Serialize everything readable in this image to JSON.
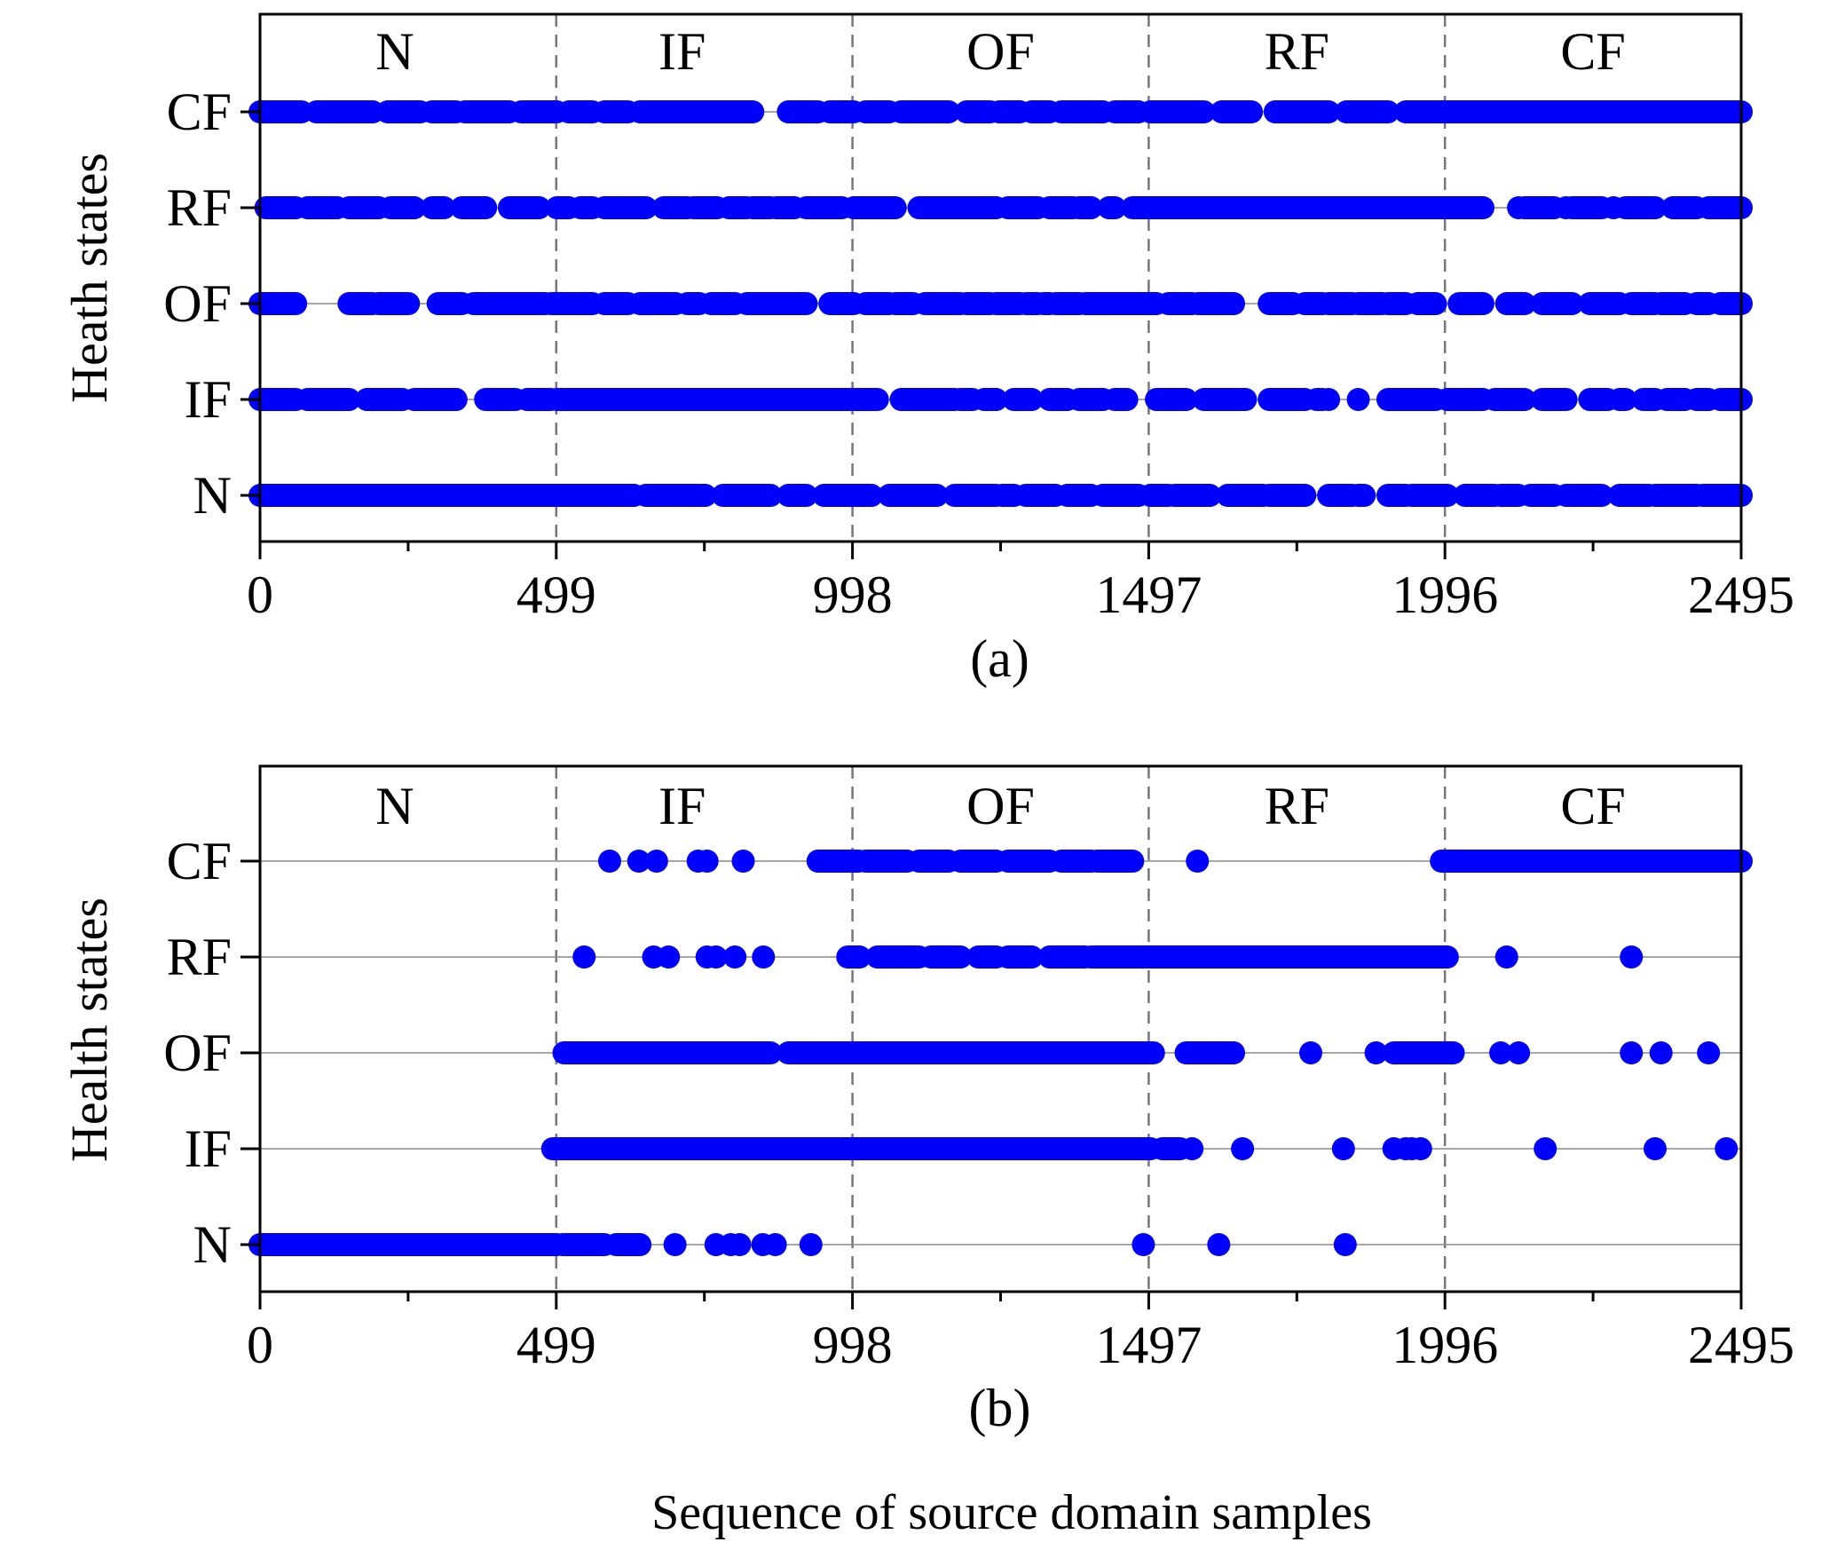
{
  "figure": {
    "xlabel": "Sequence of source domain samples"
  },
  "chart_data": [
    {
      "type": "scatter",
      "caption": "(a)",
      "ylabel": "Heath states",
      "xlim": [
        0,
        2495
      ],
      "x_ticks": [
        "0",
        "499",
        "998",
        "1497",
        "1996",
        "2495"
      ],
      "y_categories": [
        "N",
        "IF",
        "OF",
        "RF",
        "CF"
      ],
      "regions": [
        {
          "label": "N",
          "start": 0,
          "end": 499
        },
        {
          "label": "IF",
          "start": 499,
          "end": 998
        },
        {
          "label": "OF",
          "start": 998,
          "end": 1497
        },
        {
          "label": "RF",
          "start": 1497,
          "end": 1996
        },
        {
          "label": "CF",
          "start": 1996,
          "end": 2495
        }
      ],
      "marker_color": "#0000ff",
      "series": [
        {
          "category": "CF",
          "points": [],
          "runs": [
            [
              0,
              70
            ],
            [
              95,
              190
            ],
            [
              215,
              270
            ],
            [
              290,
              330
            ],
            [
              345,
              420
            ],
            [
              440,
              500
            ],
            [
              520,
              560
            ],
            [
              580,
              620
            ],
            [
              640,
              830
            ],
            [
              890,
              940
            ],
            [
              960,
              1000
            ],
            [
              1020,
              1060
            ],
            [
              1080,
              1160
            ],
            [
              1190,
              1230
            ],
            [
              1245,
              1280
            ],
            [
              1300,
              1330
            ],
            [
              1350,
              1420
            ],
            [
              1440,
              1480
            ],
            [
              1500,
              1590
            ],
            [
              1620,
              1670
            ],
            [
              1710,
              1800
            ],
            [
              1830,
              1900
            ],
            [
              1930,
              2495
            ]
          ]
        },
        {
          "category": "RF",
          "points": [
            2000,
            2120,
            2200,
            2280
          ],
          "runs": [
            [
              10,
              60
            ],
            [
              80,
              130
            ],
            [
              150,
              200
            ],
            [
              220,
              260
            ],
            [
              290,
              310
            ],
            [
              340,
              380
            ],
            [
              420,
              470
            ],
            [
              500,
              520
            ],
            [
              540,
              560
            ],
            [
              580,
              650
            ],
            [
              680,
              720
            ],
            [
              730,
              770
            ],
            [
              790,
              820
            ],
            [
              830,
              860
            ],
            [
              870,
              900
            ],
            [
              920,
              980
            ],
            [
              1000,
              1070
            ],
            [
              1110,
              1240
            ],
            [
              1260,
              1310
            ],
            [
              1330,
              1370
            ],
            [
              1380,
              1400
            ],
            [
              1430,
              1440
            ],
            [
              1470,
              2060
            ],
            [
              2130,
              2180
            ],
            [
              2210,
              2260
            ],
            [
              2300,
              2350
            ],
            [
              2380,
              2420
            ],
            [
              2440,
              2495
            ]
          ]
        },
        {
          "category": "OF",
          "points": [],
          "runs": [
            [
              0,
              60
            ],
            [
              150,
              190
            ],
            [
              200,
              250
            ],
            [
              300,
              340
            ],
            [
              360,
              480
            ],
            [
              490,
              560
            ],
            [
              580,
              620
            ],
            [
              640,
              700
            ],
            [
              720,
              740
            ],
            [
              760,
              800
            ],
            [
              820,
              920
            ],
            [
              960,
              1000
            ],
            [
              1020,
              1060
            ],
            [
              1070,
              1100
            ],
            [
              1120,
              1180
            ],
            [
              1190,
              1230
            ],
            [
              1240,
              1280
            ],
            [
              1290,
              1310
            ],
            [
              1320,
              1330
            ],
            [
              1340,
              1380
            ],
            [
              1390,
              1510
            ],
            [
              1530,
              1570
            ],
            [
              1580,
              1640
            ],
            [
              1700,
              1740
            ],
            [
              1760,
              1790
            ],
            [
              1800,
              1840
            ],
            [
              1850,
              1890
            ],
            [
              1900,
              1930
            ],
            [
              1950,
              1980
            ],
            [
              2020,
              2060
            ],
            [
              2100,
              2130
            ],
            [
              2160,
              2210
            ],
            [
              2240,
              2290
            ],
            [
              2310,
              2350
            ],
            [
              2360,
              2400
            ],
            [
              2420,
              2440
            ],
            [
              2460,
              2495
            ]
          ]
        },
        {
          "category": "IF",
          "points": [
            330,
            1800,
            1850
          ],
          "runs": [
            [
              0,
              60
            ],
            [
              80,
              150
            ],
            [
              180,
              240
            ],
            [
              260,
              330
            ],
            [
              380,
              430
            ],
            [
              450,
              490
            ],
            [
              500,
              1040
            ],
            [
              1080,
              1170
            ],
            [
              1180,
              1200
            ],
            [
              1220,
              1240
            ],
            [
              1270,
              1300
            ],
            [
              1330,
              1360
            ],
            [
              1380,
              1420
            ],
            [
              1440,
              1460
            ],
            [
              1510,
              1560
            ],
            [
              1590,
              1660
            ],
            [
              1700,
              1760
            ],
            [
              1780,
              1790
            ],
            [
              1900,
              1980
            ],
            [
              2000,
              2060
            ],
            [
              2080,
              2130
            ],
            [
              2160,
              2200
            ],
            [
              2240,
              2270
            ],
            [
              2290,
              2300
            ],
            [
              2330,
              2350
            ],
            [
              2370,
              2400
            ],
            [
              2420,
              2440
            ],
            [
              2460,
              2495
            ]
          ]
        },
        {
          "category": "N",
          "points": [],
          "runs": [
            [
              0,
              630
            ],
            [
              650,
              750
            ],
            [
              780,
              860
            ],
            [
              890,
              920
            ],
            [
              950,
              1030
            ],
            [
              1060,
              1140
            ],
            [
              1170,
              1240
            ],
            [
              1250,
              1270
            ],
            [
              1290,
              1340
            ],
            [
              1360,
              1400
            ],
            [
              1420,
              1480
            ],
            [
              1500,
              1530
            ],
            [
              1540,
              1600
            ],
            [
              1630,
              1690
            ],
            [
              1700,
              1760
            ],
            [
              1800,
              1840
            ],
            [
              1850,
              1860
            ],
            [
              1900,
              1930
            ],
            [
              1940,
              2000
            ],
            [
              2030,
              2080
            ],
            [
              2090,
              2120
            ],
            [
              2140,
              2180
            ],
            [
              2200,
              2260
            ],
            [
              2290,
              2340
            ],
            [
              2350,
              2420
            ],
            [
              2430,
              2495
            ]
          ]
        }
      ]
    },
    {
      "type": "scatter",
      "caption": "(b)",
      "ylabel": "Health states",
      "xlim": [
        0,
        2495
      ],
      "x_ticks": [
        "0",
        "499",
        "998",
        "1497",
        "1996",
        "2495"
      ],
      "y_categories": [
        "N",
        "IF",
        "OF",
        "RF",
        "CF"
      ],
      "regions": [
        {
          "label": "N",
          "start": 0,
          "end": 499
        },
        {
          "label": "IF",
          "start": 499,
          "end": 998
        },
        {
          "label": "OF",
          "start": 998,
          "end": 1497
        },
        {
          "label": "RF",
          "start": 1497,
          "end": 1996
        },
        {
          "label": "CF",
          "start": 1996,
          "end": 2495
        }
      ],
      "marker_color": "#0000ff",
      "series": [
        {
          "category": "CF",
          "points": [
            589,
            638,
            668,
            738,
            753,
            814,
            1579
          ],
          "runs": [
            [
              940,
              1008
            ],
            [
              1020,
              1090
            ],
            [
              1110,
              1160
            ],
            [
              1180,
              1240
            ],
            [
              1260,
              1330
            ],
            [
              1350,
              1400
            ],
            [
              1410,
              1470
            ],
            [
              1990,
              2495
            ]
          ]
        },
        {
          "category": "RF",
          "points": [
            546,
            663,
            688,
            753,
            768,
            800,
            848,
            2100,
            2310
          ],
          "runs": [
            [
              990,
              1010
            ],
            [
              1040,
              1110
            ],
            [
              1130,
              1180
            ],
            [
              1210,
              1240
            ],
            [
              1260,
              1300
            ],
            [
              1330,
              1390
            ],
            [
              1400,
              2000
            ]
          ]
        },
        {
          "category": "OF",
          "points": [
            1580,
            1770,
            1880,
            1920,
            2090,
            2120,
            2310,
            2360,
            2440
          ],
          "runs": [
            [
              512,
              860
            ],
            [
              890,
              1505
            ],
            [
              1560,
              1640
            ],
            [
              1910,
              2010
            ]
          ]
        },
        {
          "category": "IF",
          "points": [
            1570,
            1655,
            1825,
            1910,
            1930,
            1940,
            1955,
            2165,
            2350,
            2470
          ],
          "runs": [
            [
              493,
              1500
            ],
            [
              1520,
              1550
            ]
          ]
        },
        {
          "category": "N",
          "points": [
            699,
            768,
            793,
            808,
            847,
            868,
            928,
            1488,
            1615,
            1828
          ],
          "runs": [
            [
              0,
              500
            ],
            [
              510,
              580
            ],
            [
              600,
              640
            ]
          ]
        }
      ]
    }
  ]
}
